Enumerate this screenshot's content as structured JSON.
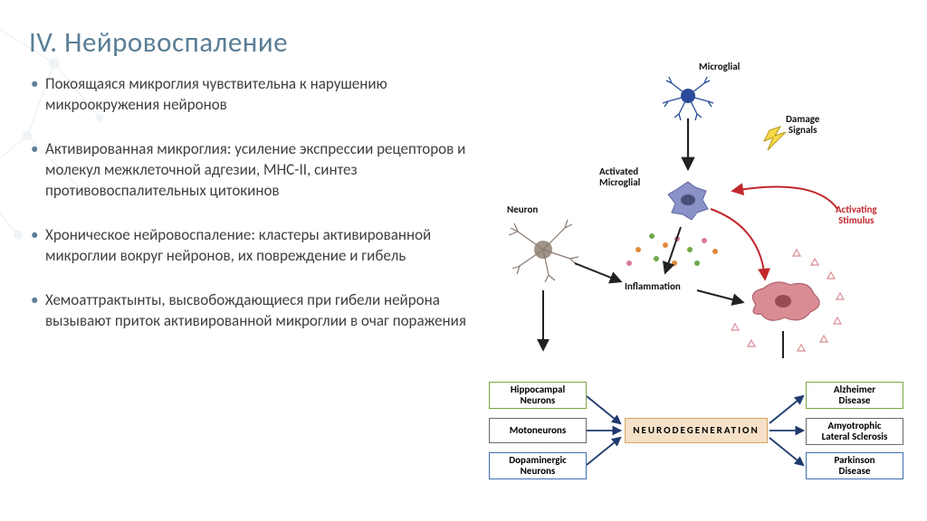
{
  "title": "IV. Нейровоспаление",
  "bullets": [
    "Покоящаяся микроглия чувствительна к нарушению микроокружения нейронов",
    "Активированная микроглия: усиление экспрессии рецепторов и молекул межклеточной адгезии, MHC-II, синтез противовоспалительных цитокинов",
    "Хроническое нейровоспаление: кластеры активированной микроглии вокруг нейронов, их повреждение и гибель",
    "Хемоаттрактынты, высвобождающиеся при гибели нейрона вызывают приток активированной микроглии в очаг поражения"
  ],
  "diagram": {
    "labels": {
      "microglial": "Microglial",
      "damage_signals": "Damage\nSignals",
      "activated_microglial": "Activated\nMicroglial",
      "neuron": "Neuron",
      "inflammation": "Inflammation",
      "activating_stimulus": "Activating\nStimulus"
    },
    "boxes_left": [
      {
        "text": "Hippocampal\nNeurons",
        "border": "#7aa843"
      },
      {
        "text": "Motoneurons",
        "border": "#6a6a6a"
      },
      {
        "text": "Dopaminergic\nNeurons",
        "border": "#3a6fb0"
      }
    ],
    "box_center": {
      "text": "NEURODEGENERATION",
      "bg": "#f6e0c8",
      "border": "#d4a55c"
    },
    "boxes_right": [
      {
        "text": "Alzheimer\nDisease",
        "border": "#7aa843"
      },
      {
        "text": "Amyotrophic\nLateral Sclerosis",
        "border": "#6a6a6a"
      },
      {
        "text": "Parkinson\nDisease",
        "border": "#3a6fb0"
      }
    ],
    "colors": {
      "microglia_resting": "#2a4a9a",
      "microglia_activated": "#6a74b8",
      "neuron": "#8a7a70",
      "inflamed_cell": "#c56b74",
      "lightning": "#f7d948",
      "arrow_black": "#222222",
      "arrow_red": "#c1272d",
      "arrow_navy": "#1f3a6e",
      "cytokine_green": "#6fa74a",
      "cytokine_orange": "#e0883a",
      "cytokine_pink": "#d97aa0",
      "triangle_pink": "#e4a6b0"
    }
  }
}
